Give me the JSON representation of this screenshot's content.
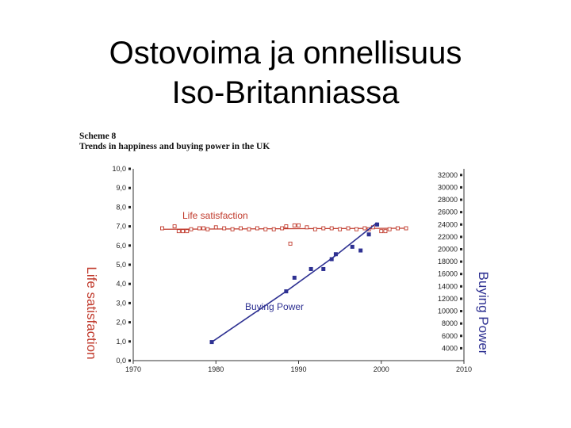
{
  "slide": {
    "title_line1": "Ostovoima ja onnellisuus",
    "title_line2": "Iso-Britanniassa"
  },
  "chart_data": {
    "type": "line",
    "scheme": "Scheme 8",
    "title": "Trends in happiness and buying power in the UK",
    "x": {
      "ticks": [
        1970,
        1980,
        1990,
        2000,
        2010
      ],
      "tick_labels": [
        "1970",
        "1980",
        "1990",
        "2000",
        "2010"
      ],
      "range": [
        1970,
        2010
      ]
    },
    "y_left": {
      "label": "Life satisfaction",
      "ticks": [
        0,
        1,
        2,
        3,
        4,
        5,
        6,
        7,
        8,
        9,
        10
      ],
      "tick_labels": [
        "0,0",
        "1,0",
        "2,0",
        "3,0",
        "4,0",
        "5,0",
        "6,0",
        "7,0",
        "8,0",
        "9,0",
        "10,0"
      ],
      "range": [
        0,
        10
      ]
    },
    "y_right": {
      "label": "Buying Power",
      "ticks": [
        4000,
        6000,
        8000,
        10000,
        12000,
        14000,
        16000,
        18000,
        20000,
        22000,
        24000,
        26000,
        28000,
        30000,
        32000
      ],
      "tick_labels": [
        "4000",
        "6000",
        "8000",
        "10000",
        "12000",
        "14000",
        "16000",
        "18000",
        "20000",
        "22000",
        "24000",
        "26000",
        "28000",
        "30000",
        "32000"
      ],
      "range": [
        2000,
        33000
      ]
    },
    "series": [
      {
        "name": "Life satisfaction",
        "axis": "left",
        "color": "#c0392b",
        "marker": "open-square",
        "points": [
          [
            1973.5,
            6.9
          ],
          [
            1975,
            7.0
          ],
          [
            1975.5,
            6.75
          ],
          [
            1976,
            6.75
          ],
          [
            1976.5,
            6.75
          ],
          [
            1977,
            6.85
          ],
          [
            1978,
            6.9
          ],
          [
            1978.5,
            6.9
          ],
          [
            1979,
            6.85
          ],
          [
            1980,
            6.95
          ],
          [
            1981,
            6.9
          ],
          [
            1982,
            6.85
          ],
          [
            1983,
            6.9
          ],
          [
            1984,
            6.85
          ],
          [
            1985,
            6.9
          ],
          [
            1986,
            6.85
          ],
          [
            1987,
            6.85
          ],
          [
            1988,
            6.9
          ],
          [
            1988.5,
            7.0
          ],
          [
            1989,
            6.1
          ],
          [
            1989.5,
            7.05
          ],
          [
            1990,
            7.05
          ],
          [
            1991,
            6.95
          ],
          [
            1992,
            6.85
          ],
          [
            1993,
            6.9
          ],
          [
            1994,
            6.9
          ],
          [
            1995,
            6.85
          ],
          [
            1996,
            6.9
          ],
          [
            1997,
            6.85
          ],
          [
            1998,
            6.9
          ],
          [
            1998.5,
            6.85
          ],
          [
            1999,
            6.95
          ],
          [
            2000,
            6.75
          ],
          [
            2000.5,
            6.75
          ],
          [
            2001,
            6.85
          ],
          [
            2002,
            6.9
          ],
          [
            2003,
            6.9
          ]
        ],
        "trend": [
          [
            1973.5,
            6.85
          ],
          [
            2003,
            6.9
          ]
        ]
      },
      {
        "name": "Buying Power",
        "axis": "right",
        "color": "#2e3192",
        "marker": "filled-square",
        "points": [
          [
            1979.5,
            5000
          ],
          [
            1988.5,
            13200
          ],
          [
            1989.5,
            15400
          ],
          [
            1991.5,
            16800
          ],
          [
            1993,
            16800
          ],
          [
            1994,
            18400
          ],
          [
            1994.5,
            19200
          ],
          [
            1996.5,
            20400
          ],
          [
            1997.5,
            19800
          ],
          [
            1998.5,
            22400
          ],
          [
            1999.5,
            24000
          ]
        ],
        "trend": [
          [
            1979.5,
            5000
          ],
          [
            1988.5,
            13200
          ],
          [
            1994.5,
            19000
          ],
          [
            1999.5,
            24300
          ]
        ]
      }
    ],
    "grid": false,
    "legend": "inline-labels"
  },
  "colors": {
    "life": "#c0392b",
    "buying": "#2e3192"
  }
}
